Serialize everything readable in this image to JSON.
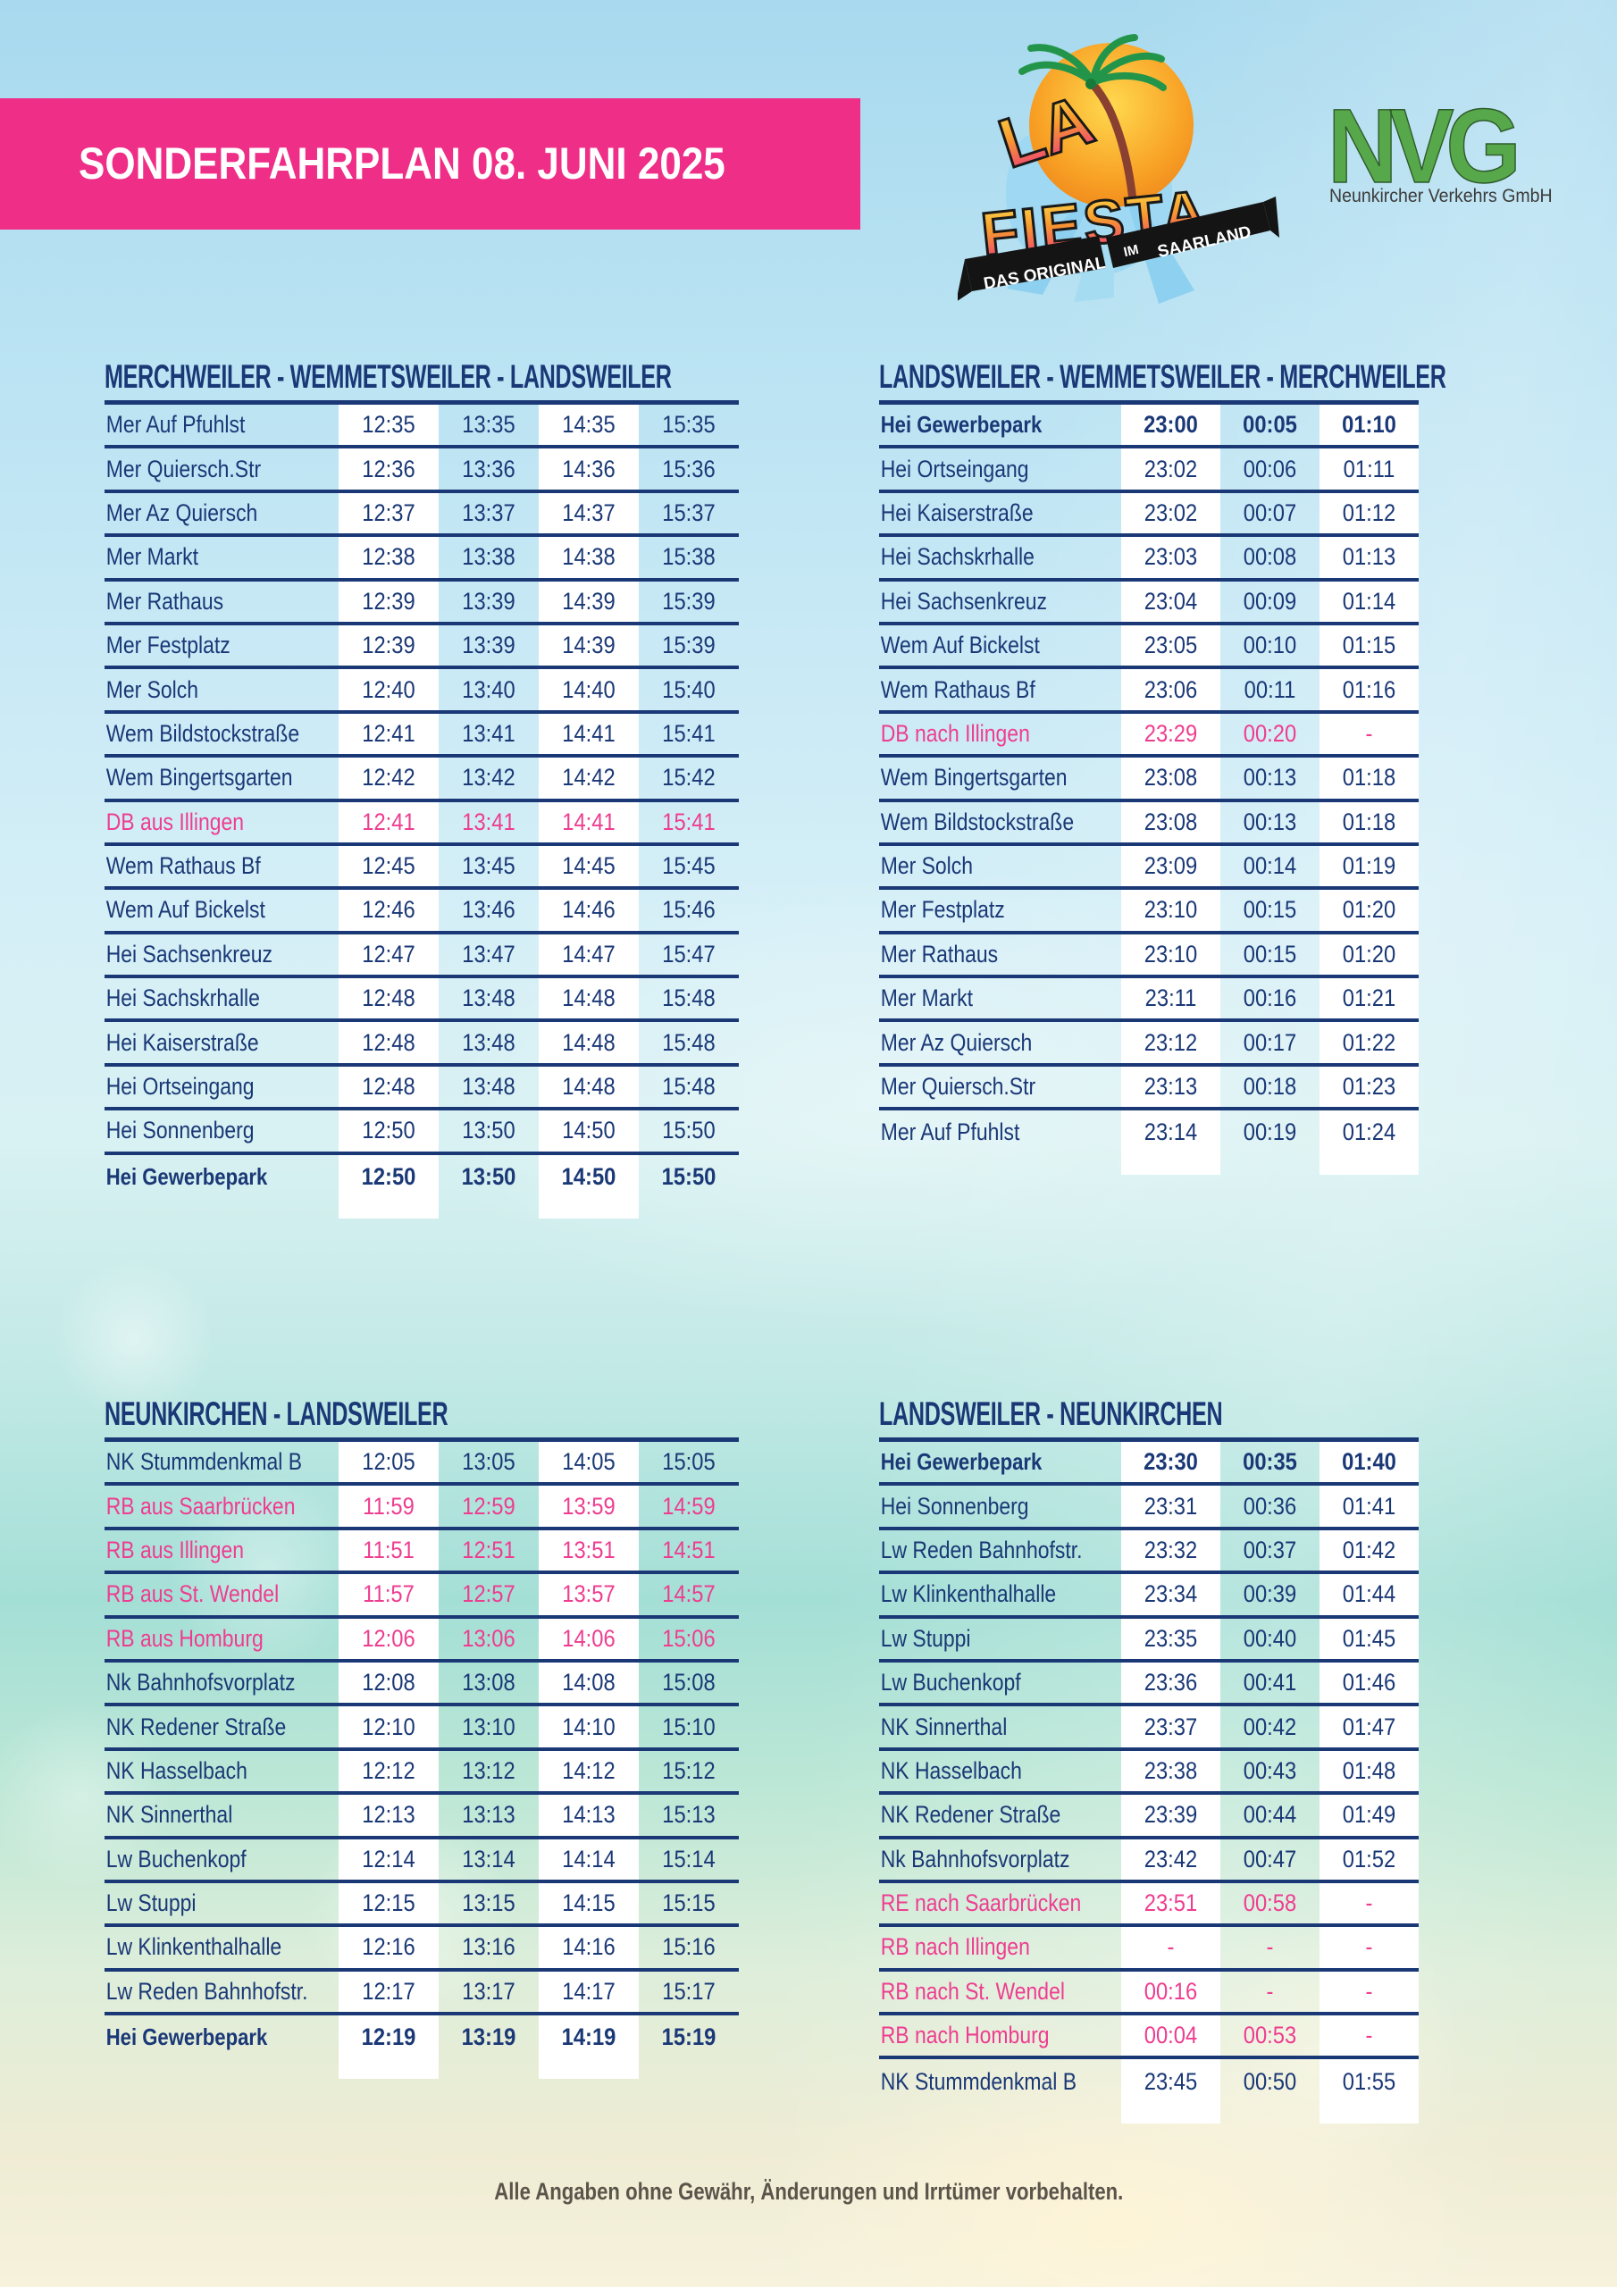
{
  "header": {
    "title": "SONDERFAHRPLAN  08. JUNI 2025"
  },
  "logos": {
    "fiesta": {
      "word_la": "LA",
      "word_fiesta": "FIESTA",
      "ribbon_left": "DAS ORIGINAL",
      "ribbon_mid": "IM",
      "ribbon_right": "SAARLAND"
    },
    "nvg": {
      "letters": "NVG",
      "subtitle": "Neunkircher Verkehrs GmbH"
    }
  },
  "colors": {
    "banner_pink": "#ee2e87",
    "row_pink": "#ee3d90",
    "navy": "#1a3876",
    "nvg_green": "#56a84b",
    "white_cell": "#ffffff"
  },
  "footer": {
    "note": "Alle Angaben ohne Gewähr, Änderungen und Irrtümer vorbehalten."
  },
  "tables": [
    {
      "title": "MERCHWEILER - WEMMETSWEILER - LANDSWEILER",
      "rows": [
        {
          "station": "Mer Auf Pfuhlst",
          "times": [
            "12:35",
            "13:35",
            "14:35",
            "15:35"
          ],
          "pink": false,
          "bold": false
        },
        {
          "station": "Mer Quiersch.Str",
          "times": [
            "12:36",
            "13:36",
            "14:36",
            "15:36"
          ],
          "pink": false,
          "bold": false
        },
        {
          "station": "Mer Az Quiersch",
          "times": [
            "12:37",
            "13:37",
            "14:37",
            "15:37"
          ],
          "pink": false,
          "bold": false
        },
        {
          "station": "Mer Markt",
          "times": [
            "12:38",
            "13:38",
            "14:38",
            "15:38"
          ],
          "pink": false,
          "bold": false
        },
        {
          "station": "Mer Rathaus",
          "times": [
            "12:39",
            "13:39",
            "14:39",
            "15:39"
          ],
          "pink": false,
          "bold": false
        },
        {
          "station": "Mer Festplatz",
          "times": [
            "12:39",
            "13:39",
            "14:39",
            "15:39"
          ],
          "pink": false,
          "bold": false
        },
        {
          "station": "Mer Solch",
          "times": [
            "12:40",
            "13:40",
            "14:40",
            "15:40"
          ],
          "pink": false,
          "bold": false
        },
        {
          "station": "Wem Bildstockstraße",
          "times": [
            "12:41",
            "13:41",
            "14:41",
            "15:41"
          ],
          "pink": false,
          "bold": false
        },
        {
          "station": "Wem Bingertsgarten",
          "times": [
            "12:42",
            "13:42",
            "14:42",
            "15:42"
          ],
          "pink": false,
          "bold": false
        },
        {
          "station": "DB aus Illingen",
          "times": [
            "12:41",
            "13:41",
            "14:41",
            "15:41"
          ],
          "pink": true,
          "bold": false
        },
        {
          "station": "Wem Rathaus Bf",
          "times": [
            "12:45",
            "13:45",
            "14:45",
            "15:45"
          ],
          "pink": false,
          "bold": false
        },
        {
          "station": "Wem Auf Bickelst",
          "times": [
            "12:46",
            "13:46",
            "14:46",
            "15:46"
          ],
          "pink": false,
          "bold": false
        },
        {
          "station": "Hei Sachsenkreuz",
          "times": [
            "12:47",
            "13:47",
            "14:47",
            "15:47"
          ],
          "pink": false,
          "bold": false
        },
        {
          "station": "Hei Sachskrhalle",
          "times": [
            "12:48",
            "13:48",
            "14:48",
            "15:48"
          ],
          "pink": false,
          "bold": false
        },
        {
          "station": "Hei Kaiserstraße",
          "times": [
            "12:48",
            "13:48",
            "14:48",
            "15:48"
          ],
          "pink": false,
          "bold": false
        },
        {
          "station": "Hei Ortseingang",
          "times": [
            "12:48",
            "13:48",
            "14:48",
            "15:48"
          ],
          "pink": false,
          "bold": false
        },
        {
          "station": "Hei Sonnenberg",
          "times": [
            "12:50",
            "13:50",
            "14:50",
            "15:50"
          ],
          "pink": false,
          "bold": false
        },
        {
          "station": "Hei Gewerbepark",
          "times": [
            "12:50",
            "13:50",
            "14:50",
            "15:50"
          ],
          "pink": false,
          "bold": true
        }
      ]
    },
    {
      "title": "LANDSWEILER - WEMMETSWEILER - MERCHWEILER",
      "rows": [
        {
          "station": "Hei Gewerbepark",
          "times": [
            "23:00",
            "00:05",
            "01:10"
          ],
          "pink": false,
          "bold": true
        },
        {
          "station": "Hei Ortseingang",
          "times": [
            "23:02",
            "00:06",
            "01:11"
          ],
          "pink": false,
          "bold": false
        },
        {
          "station": "Hei Kaiserstraße",
          "times": [
            "23:02",
            "00:07",
            "01:12"
          ],
          "pink": false,
          "bold": false
        },
        {
          "station": "Hei Sachskrhalle",
          "times": [
            "23:03",
            "00:08",
            "01:13"
          ],
          "pink": false,
          "bold": false
        },
        {
          "station": "Hei Sachsenkreuz",
          "times": [
            "23:04",
            "00:09",
            "01:14"
          ],
          "pink": false,
          "bold": false
        },
        {
          "station": "Wem Auf Bickelst",
          "times": [
            "23:05",
            "00:10",
            "01:15"
          ],
          "pink": false,
          "bold": false
        },
        {
          "station": "Wem Rathaus Bf",
          "times": [
            "23:06",
            "00:11",
            "01:16"
          ],
          "pink": false,
          "bold": false
        },
        {
          "station": "DB nach Illingen",
          "times": [
            "23:29",
            "00:20",
            "-"
          ],
          "pink": true,
          "bold": false
        },
        {
          "station": "Wem Bingertsgarten",
          "times": [
            "23:08",
            "00:13",
            "01:18"
          ],
          "pink": false,
          "bold": false
        },
        {
          "station": "Wem Bildstockstraße",
          "times": [
            "23:08",
            "00:13",
            "01:18"
          ],
          "pink": false,
          "bold": false
        },
        {
          "station": "Mer Solch",
          "times": [
            "23:09",
            "00:14",
            "01:19"
          ],
          "pink": false,
          "bold": false
        },
        {
          "station": "Mer Festplatz",
          "times": [
            "23:10",
            "00:15",
            "01:20"
          ],
          "pink": false,
          "bold": false
        },
        {
          "station": "Mer Rathaus",
          "times": [
            "23:10",
            "00:15",
            "01:20"
          ],
          "pink": false,
          "bold": false
        },
        {
          "station": "Mer Markt",
          "times": [
            "23:11",
            "00:16",
            "01:21"
          ],
          "pink": false,
          "bold": false
        },
        {
          "station": "Mer Az Quiersch",
          "times": [
            "23:12",
            "00:17",
            "01:22"
          ],
          "pink": false,
          "bold": false
        },
        {
          "station": "Mer Quiersch.Str",
          "times": [
            "23:13",
            "00:18",
            "01:23"
          ],
          "pink": false,
          "bold": false
        },
        {
          "station": "Mer Auf Pfuhlst",
          "times": [
            "23:14",
            "00:19",
            "01:24"
          ],
          "pink": false,
          "bold": false
        }
      ]
    },
    {
      "title": "NEUNKIRCHEN - LANDSWEILER",
      "rows": [
        {
          "station": "NK Stummdenkmal B",
          "times": [
            "12:05",
            "13:05",
            "14:05",
            "15:05"
          ],
          "pink": false,
          "bold": false
        },
        {
          "station": "RB aus Saarbrücken",
          "times": [
            "11:59",
            "12:59",
            "13:59",
            "14:59"
          ],
          "pink": true,
          "bold": false
        },
        {
          "station": "RB aus Illingen",
          "times": [
            "11:51",
            "12:51",
            "13:51",
            "14:51"
          ],
          "pink": true,
          "bold": false
        },
        {
          "station": "RB aus St. Wendel",
          "times": [
            "11:57",
            "12:57",
            "13:57",
            "14:57"
          ],
          "pink": true,
          "bold": false
        },
        {
          "station": "RB aus Homburg",
          "times": [
            "12:06",
            "13:06",
            "14:06",
            "15:06"
          ],
          "pink": true,
          "bold": false
        },
        {
          "station": "Nk Bahnhofsvorplatz",
          "times": [
            "12:08",
            "13:08",
            "14:08",
            "15:08"
          ],
          "pink": false,
          "bold": false
        },
        {
          "station": "NK Redener Straße",
          "times": [
            "12:10",
            "13:10",
            "14:10",
            "15:10"
          ],
          "pink": false,
          "bold": false
        },
        {
          "station": "NK Hasselbach",
          "times": [
            "12:12",
            "13:12",
            "14:12",
            "15:12"
          ],
          "pink": false,
          "bold": false
        },
        {
          "station": "NK Sinnerthal",
          "times": [
            "12:13",
            "13:13",
            "14:13",
            "15:13"
          ],
          "pink": false,
          "bold": false
        },
        {
          "station": "Lw Buchenkopf",
          "times": [
            "12:14",
            "13:14",
            "14:14",
            "15:14"
          ],
          "pink": false,
          "bold": false
        },
        {
          "station": "Lw Stuppi",
          "times": [
            "12:15",
            "13:15",
            "14:15",
            "15:15"
          ],
          "pink": false,
          "bold": false
        },
        {
          "station": "Lw Klinkenthalhalle",
          "times": [
            "12:16",
            "13:16",
            "14:16",
            "15:16"
          ],
          "pink": false,
          "bold": false
        },
        {
          "station": "Lw Reden Bahnhofstr.",
          "times": [
            "12:17",
            "13:17",
            "14:17",
            "15:17"
          ],
          "pink": false,
          "bold": false
        },
        {
          "station": "Hei Gewerbepark",
          "times": [
            "12:19",
            "13:19",
            "14:19",
            "15:19"
          ],
          "pink": false,
          "bold": true
        }
      ]
    },
    {
      "title": "LANDSWEILER - NEUNKIRCHEN",
      "rows": [
        {
          "station": "Hei Gewerbepark",
          "times": [
            "23:30",
            "00:35",
            "01:40"
          ],
          "pink": false,
          "bold": true
        },
        {
          "station": "Hei Sonnenberg",
          "times": [
            "23:31",
            "00:36",
            "01:41"
          ],
          "pink": false,
          "bold": false
        },
        {
          "station": "Lw Reden Bahnhofstr.",
          "times": [
            "23:32",
            "00:37",
            "01:42"
          ],
          "pink": false,
          "bold": false
        },
        {
          "station": "Lw Klinkenthalhalle",
          "times": [
            "23:34",
            "00:39",
            "01:44"
          ],
          "pink": false,
          "bold": false
        },
        {
          "station": "Lw Stuppi",
          "times": [
            "23:35",
            "00:40",
            "01:45"
          ],
          "pink": false,
          "bold": false
        },
        {
          "station": "Lw Buchenkopf",
          "times": [
            "23:36",
            "00:41",
            "01:46"
          ],
          "pink": false,
          "bold": false
        },
        {
          "station": "NK Sinnerthal",
          "times": [
            "23:37",
            "00:42",
            "01:47"
          ],
          "pink": false,
          "bold": false
        },
        {
          "station": "NK Hasselbach",
          "times": [
            "23:38",
            "00:43",
            "01:48"
          ],
          "pink": false,
          "bold": false
        },
        {
          "station": "NK Redener Straße",
          "times": [
            "23:39",
            "00:44",
            "01:49"
          ],
          "pink": false,
          "bold": false
        },
        {
          "station": "Nk Bahnhofsvorplatz",
          "times": [
            "23:42",
            "00:47",
            "01:52"
          ],
          "pink": false,
          "bold": false
        },
        {
          "station": "RE nach Saarbrücken",
          "times": [
            "23:51",
            "00:58",
            "-"
          ],
          "pink": true,
          "bold": false
        },
        {
          "station": "RB nach Illingen",
          "times": [
            "-",
            "-",
            "-"
          ],
          "pink": true,
          "bold": false
        },
        {
          "station": "RB nach St. Wendel",
          "times": [
            "00:16",
            "-",
            "-"
          ],
          "pink": true,
          "bold": false
        },
        {
          "station": "RB nach Homburg",
          "times": [
            "00:04",
            "00:53",
            "-"
          ],
          "pink": true,
          "bold": false
        },
        {
          "station": "NK Stummdenkmal B",
          "times": [
            "23:45",
            "00:50",
            "01:55"
          ],
          "pink": false,
          "bold": false
        }
      ]
    }
  ]
}
